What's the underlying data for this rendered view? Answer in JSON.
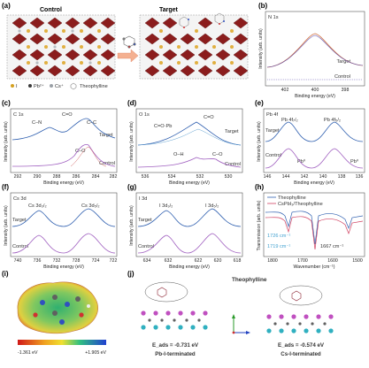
{
  "figure": {
    "a": {
      "panel": "(a)",
      "control": "Control",
      "target": "Target",
      "legend": [
        {
          "sym": "I",
          "color": "#d4a020"
        },
        {
          "sym": "Pb²⁺",
          "color": "#3a3a3a"
        },
        {
          "sym": "Cs⁺",
          "color": "#9aa0a6"
        },
        {
          "sym": "Theophylline",
          "color": "#888"
        }
      ]
    },
    "b": {
      "panel": "(b)",
      "core": "N 1s",
      "ticks": [
        "402",
        "400",
        "398"
      ],
      "xlabel": "Binding energy (eV)",
      "ylabel": "Intensity (arb. units)",
      "top": "Target",
      "bottom": "Control"
    },
    "c": {
      "panel": "(c)",
      "core": "C 1s",
      "ticks": [
        "292",
        "290",
        "288",
        "286",
        "284",
        "282"
      ],
      "xlabel": "Binding energy (eV)",
      "ylabel": "Intensity (arb. units)",
      "peaks": [
        "C=O",
        "C–N",
        "C–C",
        "C–O"
      ],
      "top": "Target",
      "bottom": "Control"
    },
    "d": {
      "panel": "(d)",
      "core": "O 1s",
      "ticks": [
        "536",
        "534",
        "532",
        "530"
      ],
      "xlabel": "Binding energy (eV)",
      "ylabel": "Intensity (arb. units)",
      "peaks": [
        "C=O",
        "C=O·Pb",
        "O–H",
        "C–O"
      ],
      "top": "Target",
      "bottom": "Control"
    },
    "e": {
      "panel": "(e)",
      "core": "Pb 4f",
      "ticks": [
        "146",
        "144",
        "142",
        "140",
        "138",
        "136"
      ],
      "xlabel": "Binding energy (eV)",
      "ylabel": "Intensity (arb. units)",
      "peaks": [
        "Pb 4f₇/₂",
        "Pb 4f₅/₂",
        "Pb⁰",
        "Pb⁰"
      ],
      "top": "Target",
      "bottom": "Control"
    },
    "f": {
      "panel": "(f)",
      "core": "Cs 3d",
      "ticks": [
        "740",
        "736",
        "732",
        "728",
        "724",
        "722"
      ],
      "xlabel": "Binding energy (eV)",
      "ylabel": "Intensity (arb. units)",
      "peaks": [
        "Cs 3d₃/₂",
        "Cs 3d₅/₂"
      ],
      "top": "Target",
      "bottom": "Control"
    },
    "g": {
      "panel": "(g)",
      "core": "I 3d",
      "ticks": [
        "634",
        "632",
        "622",
        "620",
        "618"
      ],
      "xlabel": "Binding energy (eV)",
      "ylabel": "Intensity (arb. units)",
      "peaks": [
        "I 3d₃/₂",
        "I 3d₅/₂"
      ],
      "top": "Target",
      "bottom": "Control"
    },
    "h": {
      "panel": "(h)",
      "ticks": [
        "1800",
        "1700",
        "1600",
        "1500"
      ],
      "xlabel": "Wavenumber (cm⁻¹)",
      "ylabel": "Transmission (arb. units)",
      "legend": [
        "Theophylline",
        "CsPbI₃/Theophylline"
      ],
      "annotations": [
        "1726 cm⁻¹",
        "1719 cm⁻¹",
        "1667 cm⁻¹"
      ],
      "colors": [
        "#3060b0",
        "#d04060"
      ]
    },
    "i": {
      "panel": "(i)",
      "cbar_min": "-1.361 eV",
      "cbar_max": "+1.905 eV"
    },
    "j": {
      "panel": "(j)",
      "molecule": "Theophylline",
      "left_energy": "E_ads = -0.731 eV",
      "right_energy": "E_ads = -0.574 eV",
      "left_label": "Pb-I-terminated",
      "right_label": "Cs-I-terminated"
    }
  }
}
